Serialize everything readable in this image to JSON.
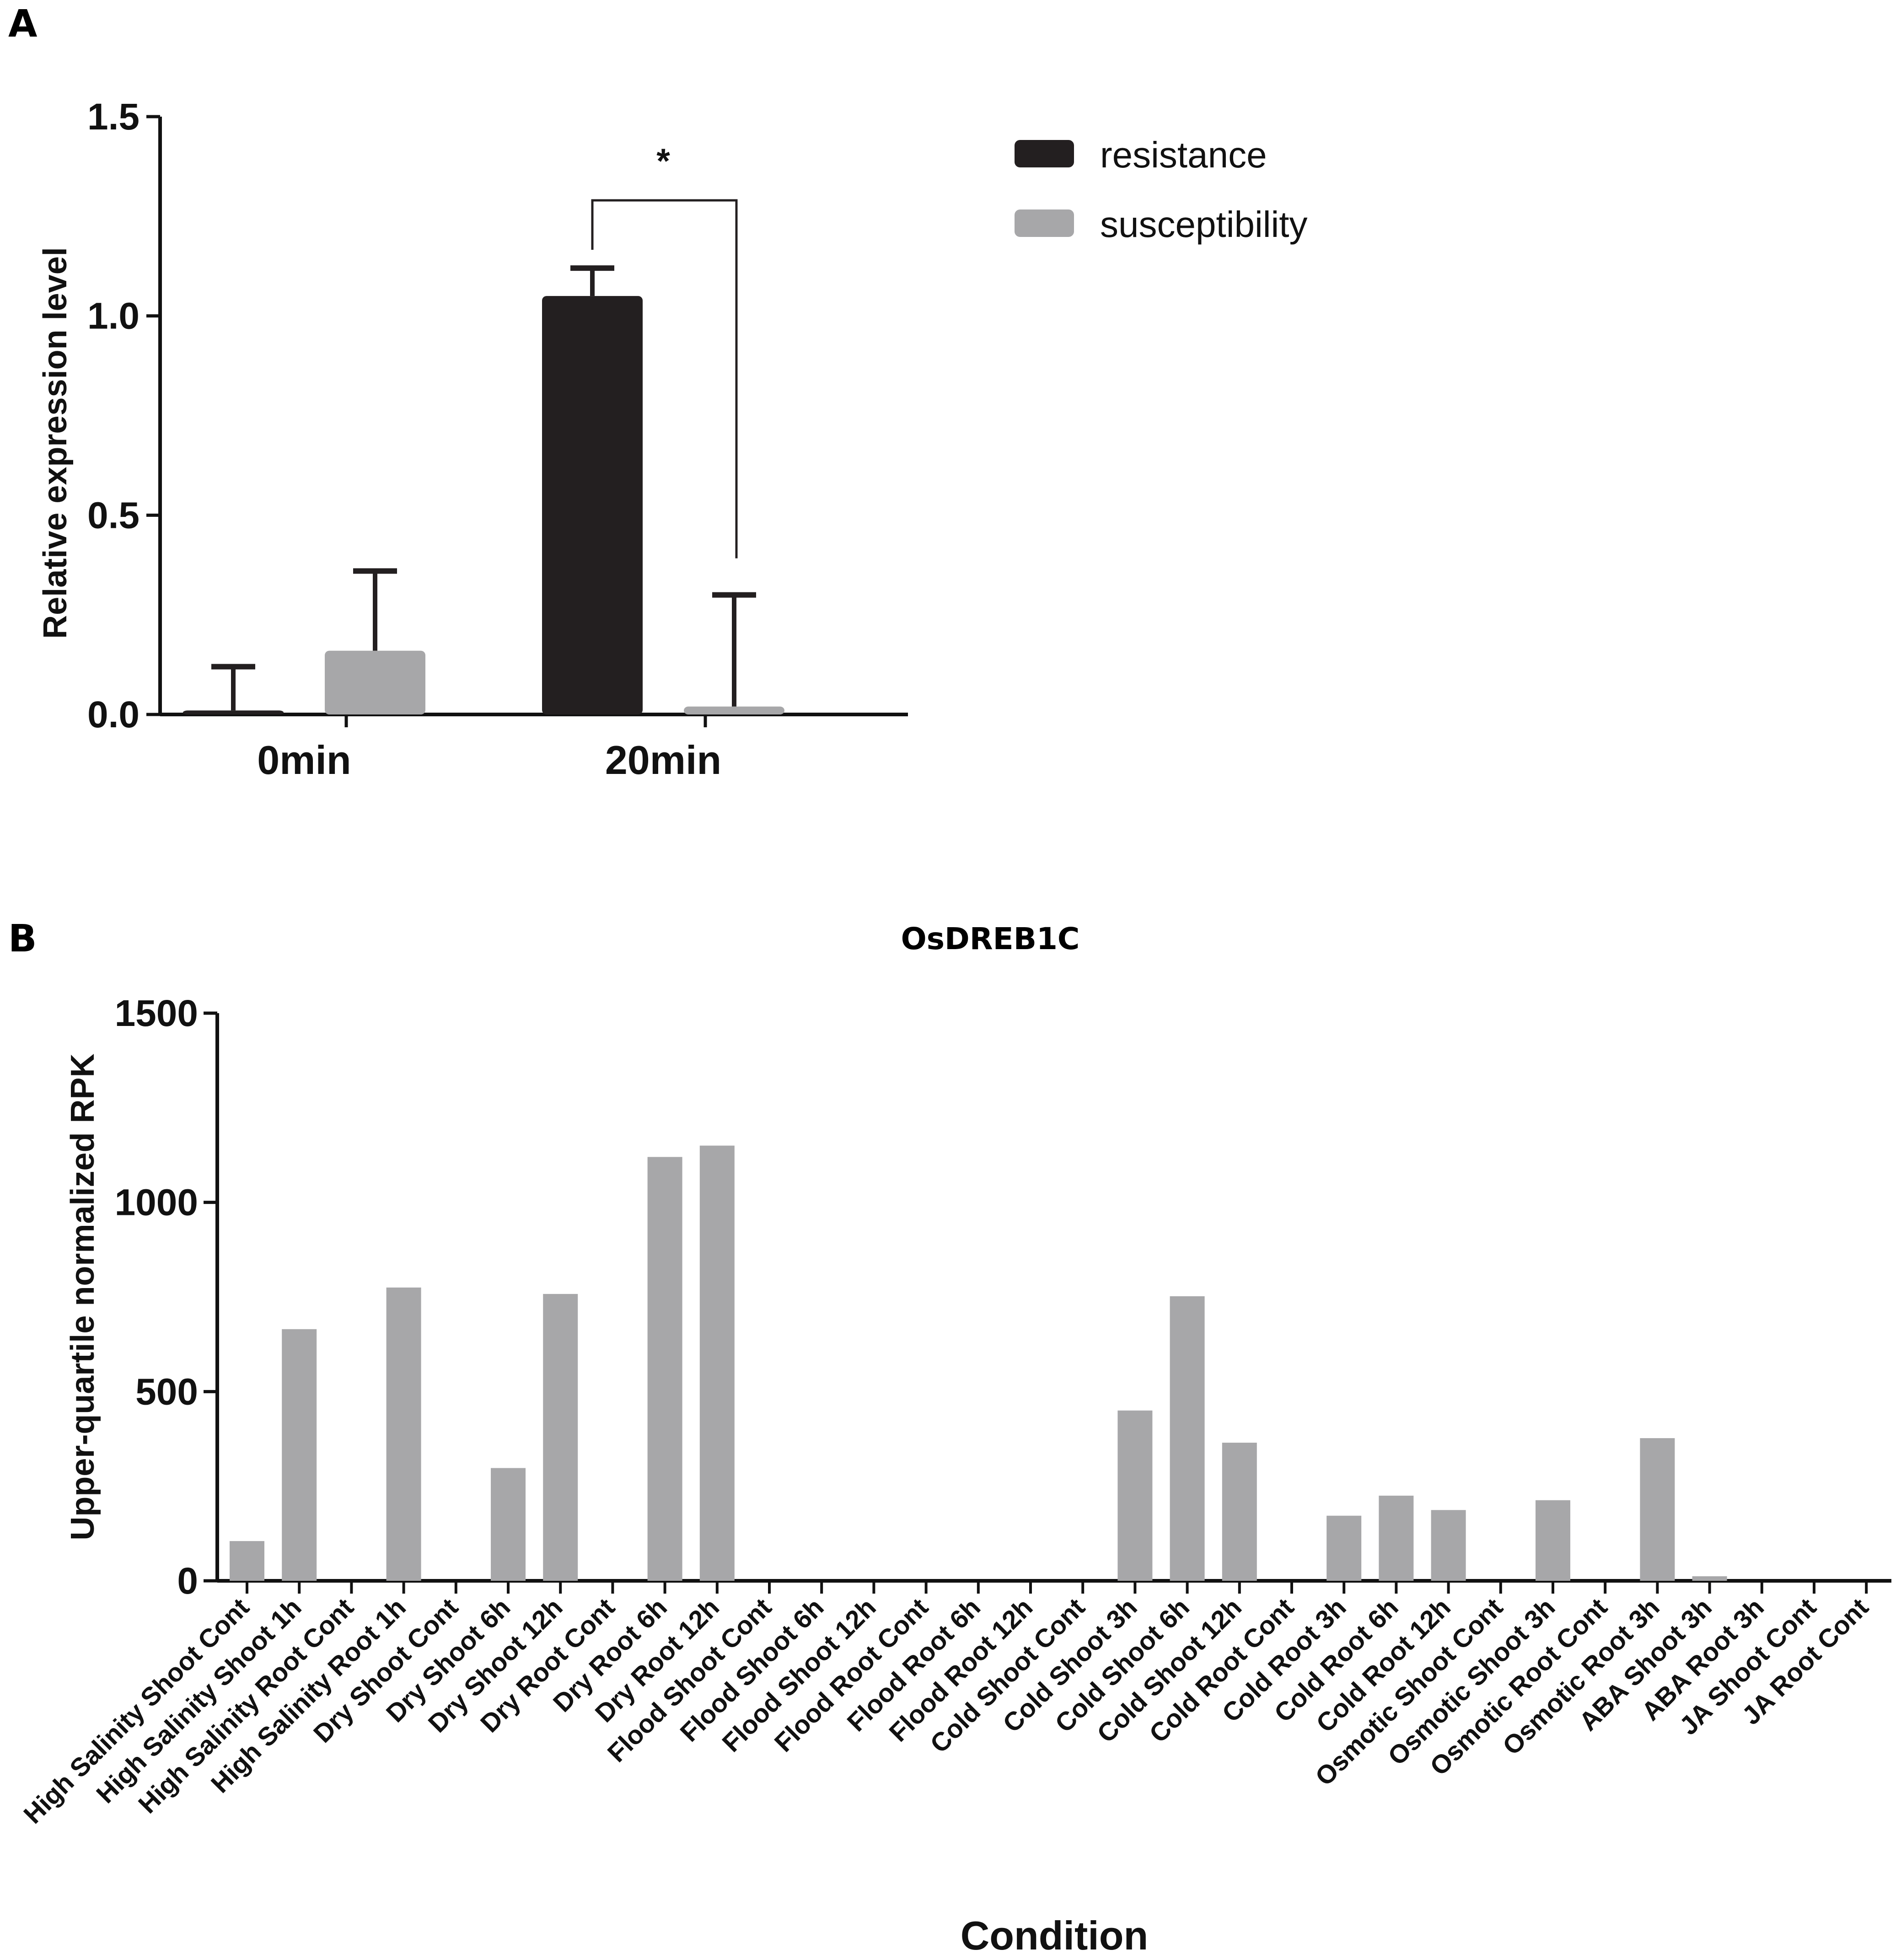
{
  "panel_a": {
    "letter": "A",
    "significance_marker": "*",
    "colors": {
      "resistance": "#231f20",
      "susceptibility": "#a7a7a9"
    },
    "chart_data": {
      "type": "bar",
      "title": "",
      "xlabel": "",
      "ylabel": "Relative expression level",
      "ylim": [
        0,
        1.5
      ],
      "yticks": [
        "0.0",
        "0.5",
        "1.0",
        "1.5"
      ],
      "categories": [
        "0min",
        "20min"
      ],
      "series": [
        {
          "name": "resistance",
          "values": [
            0.01,
            1.05
          ],
          "errors": [
            0.11,
            0.07
          ]
        },
        {
          "name": "susceptibility",
          "values": [
            0.16,
            0.02
          ],
          "errors": [
            0.2,
            0.28
          ]
        }
      ],
      "legend": [
        "resistance",
        "susceptibility"
      ],
      "legend_position": "top-right",
      "annotation": {
        "text": "*",
        "between": [
          "resistance 20min",
          "susceptibility 20min"
        ]
      }
    }
  },
  "panel_b": {
    "letter": "B",
    "colors": {
      "bar": "#a7a7a9"
    },
    "chart_data": {
      "type": "bar",
      "title": "OsDREB1C",
      "xlabel": "Condition",
      "ylabel": "Upper-quartile normalized RPK",
      "ylim": [
        0,
        1500
      ],
      "yticks": [
        "0",
        "500",
        "1000",
        "1500"
      ],
      "categories": [
        "High Salinity Shoot Cont",
        "High Salinity Shoot 1h",
        "High Salinity Root Cont",
        "High Salinity Root 1h",
        "Dry Shoot Cont",
        "Dry Shoot 6h",
        "Dry Shoot 12h",
        "Dry Root Cont",
        "Dry Root 6h",
        "Dry Root 12h",
        "Flood Shoot Cont",
        "Flood Shoot 6h",
        "Flood Shoot 12h",
        "Flood Root Cont",
        "Flood Root 6h",
        "Flood Root 12h",
        "Cold Shoot Cont",
        "Cold Shoot 3h",
        "Cold Shoot 6h",
        "Cold Shoot 12h",
        "Cold Root Cont",
        "Cold Root 3h",
        "Cold Root 6h",
        "Cold Root 12h",
        "Osmotic Shoot Cont",
        "Osmotic Shoot 3h",
        "Osmotic Root Cont",
        "Osmotic Root 3h",
        "ABA Shoot 3h",
        "ABA Root 3h",
        "JA Shoot Cont",
        "JA Root Cont"
      ],
      "values": [
        105,
        665,
        0,
        775,
        0,
        298,
        758,
        0,
        1120,
        1150,
        0,
        0,
        0,
        0,
        0,
        0,
        0,
        450,
        752,
        365,
        0,
        172,
        225,
        187,
        0,
        213,
        0,
        377,
        12,
        0,
        0,
        0
      ]
    }
  }
}
